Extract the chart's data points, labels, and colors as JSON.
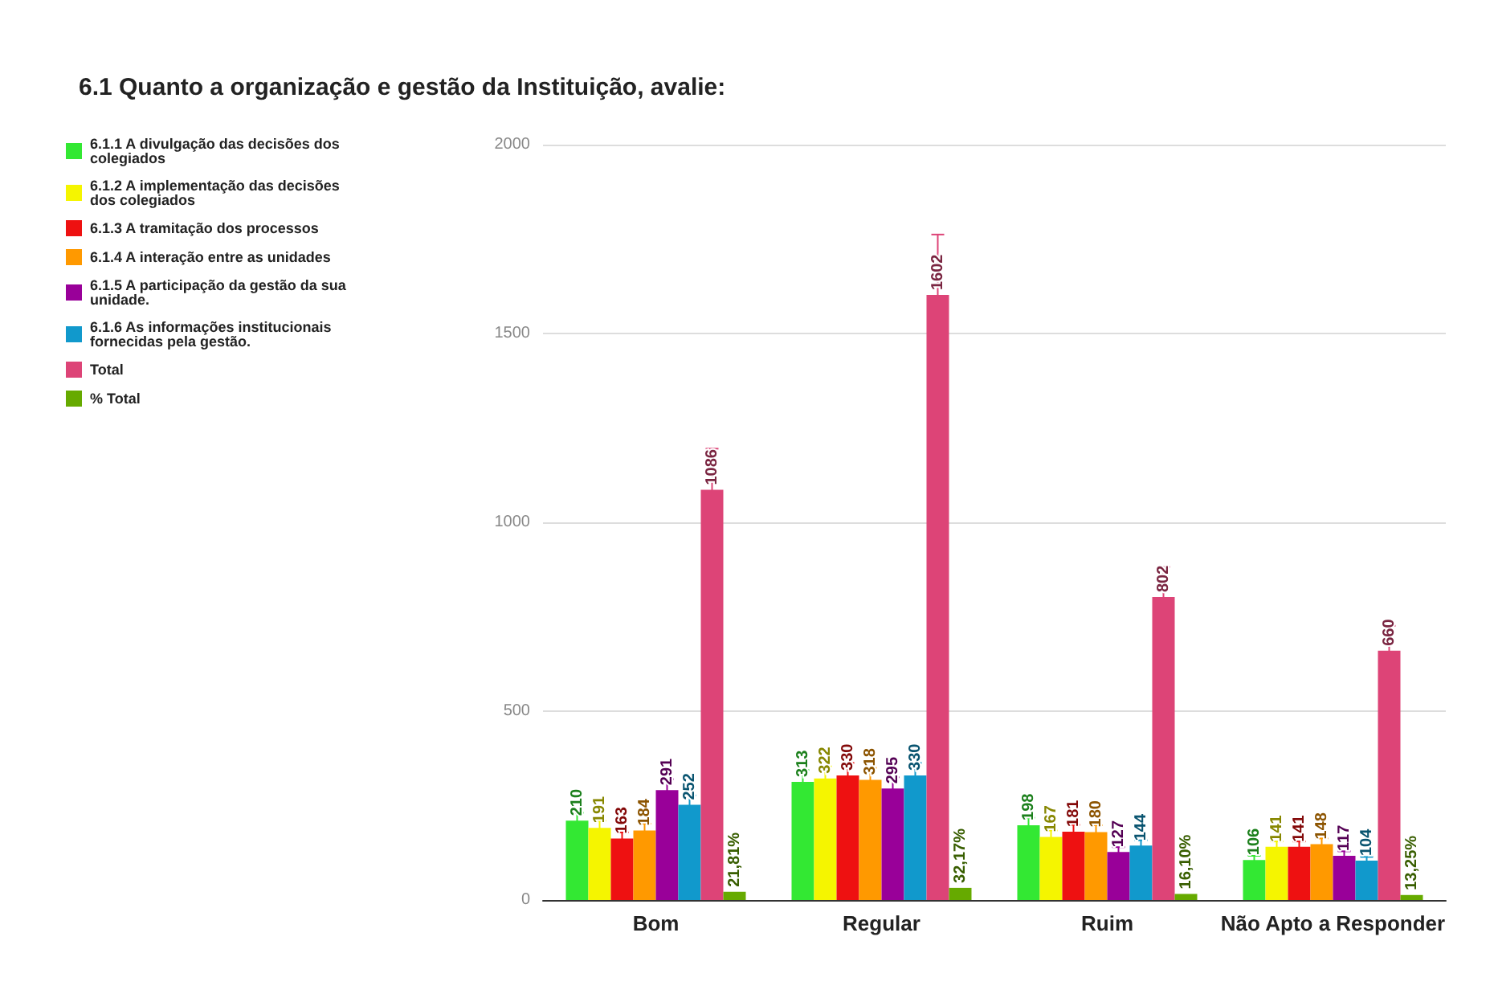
{
  "chart_data": {
    "type": "bar",
    "title": "6.1 Quanto a organização e gestão da Instituição, avalie:",
    "categories": [
      "Bom",
      "Regular",
      "Ruim",
      "Não Apto a Responder"
    ],
    "ylim": [
      0,
      2000
    ],
    "yticks": [
      0,
      500,
      1000,
      1500,
      2000
    ],
    "grid": "y",
    "legend": "left",
    "series": [
      {
        "name": "6.1.1 A divulgação das decisões dos colegiados",
        "color": "#33e833",
        "values": [
          210,
          313,
          198,
          106
        ],
        "errors": [
          21,
          31,
          20,
          11
        ],
        "value_labels": [
          "210",
          "313",
          "198",
          "106"
        ]
      },
      {
        "name": "6.1.2 A implementação das decisões dos colegiados",
        "color": "#f5f500",
        "values": [
          191,
          322,
          167,
          141
        ],
        "errors": [
          19,
          32,
          17,
          14
        ],
        "value_labels": [
          "191",
          "322",
          "167",
          "141"
        ]
      },
      {
        "name": "6.1.3 A tramitação dos processos",
        "color": "#ee1111",
        "values": [
          163,
          330,
          181,
          141
        ],
        "errors": [
          16,
          33,
          18,
          14
        ],
        "value_labels": [
          "163",
          "330",
          "181",
          "141"
        ]
      },
      {
        "name": "6.1.4 A interação entre as unidades",
        "color": "#ff9900",
        "values": [
          184,
          318,
          180,
          148
        ],
        "errors": [
          18,
          32,
          18,
          15
        ],
        "value_labels": [
          "184",
          "318",
          "180",
          "148"
        ]
      },
      {
        "name": "6.1.5 A participação da gestão da sua unidade.",
        "color": "#990099",
        "values": [
          291,
          295,
          127,
          117
        ],
        "errors": [
          29,
          30,
          13,
          12
        ],
        "value_labels": [
          "291",
          "295",
          "127",
          "117"
        ]
      },
      {
        "name": "6.1.6 As informações institucionais fornecidas pela gestão.",
        "color": "#1199cc",
        "values": [
          252,
          330,
          144,
          104
        ],
        "errors": [
          25,
          33,
          14,
          10
        ],
        "value_labels": [
          "252",
          "330",
          "144",
          "104"
        ]
      },
      {
        "name": "Total",
        "color": "#dd4477",
        "values": [
          1086,
          1602,
          802,
          660
        ],
        "errors": [
          109,
          160,
          80,
          66
        ],
        "value_labels": [
          "1086",
          "1602",
          "802",
          "660"
        ]
      },
      {
        "name": "% Total",
        "color": "#66aa00",
        "values": [
          21.81,
          32.17,
          16.1,
          13.25
        ],
        "value_labels": [
          "21,81%",
          "32,17%",
          "16,10%",
          "13,25%"
        ]
      }
    ]
  }
}
